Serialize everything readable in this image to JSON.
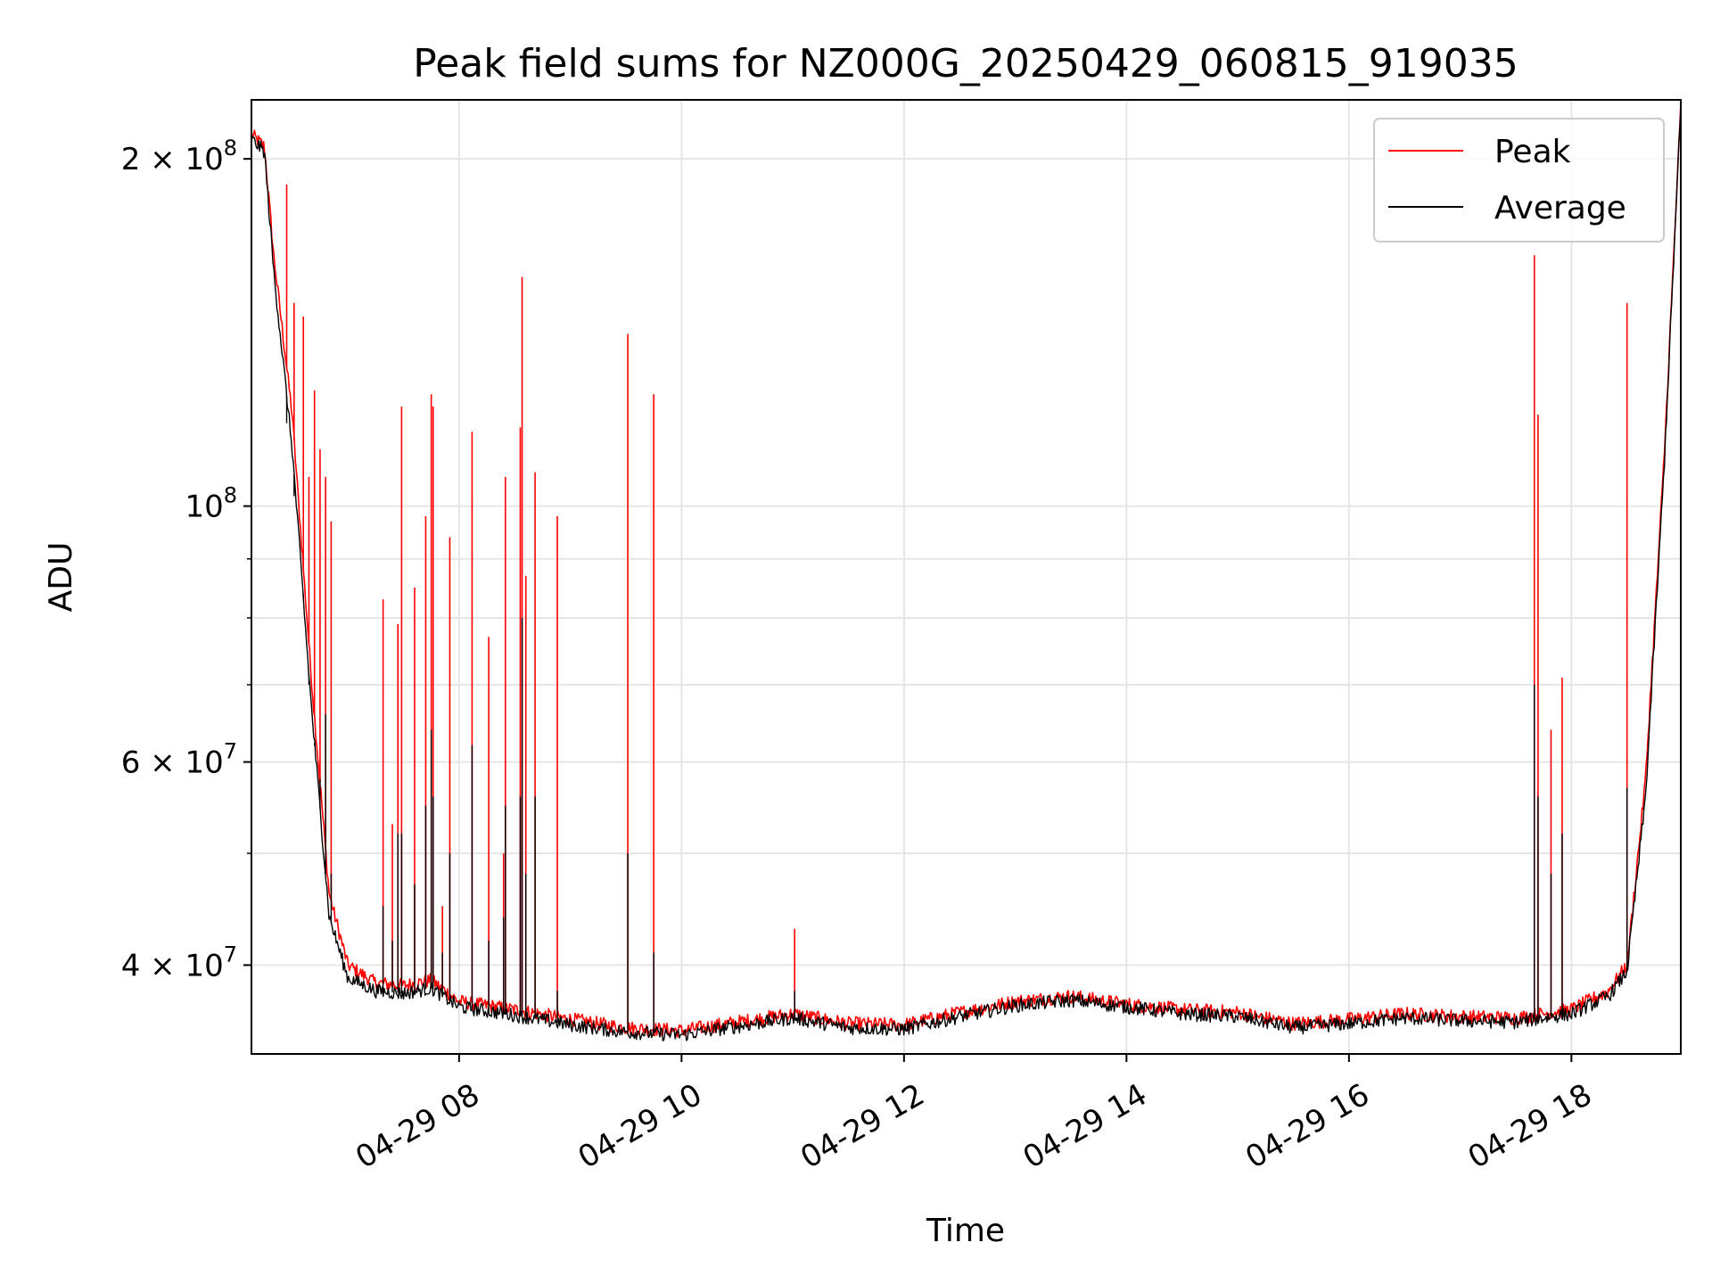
{
  "chart_data": {
    "type": "line",
    "title": "Peak field sums for NZ000G_20250429_060815_919035",
    "xlabel": "Time",
    "ylabel": "ADU",
    "y_scale": "log",
    "xlim": [
      "2025-04-29 06:08",
      "2025-04-29 18:59"
    ],
    "ylim": [
      33500000,
      225000000
    ],
    "grid": true,
    "legend": {
      "position": "top-right"
    },
    "x_ticks": [
      "04-29 08",
      "04-29 10",
      "04-29 12",
      "04-29 14",
      "04-29 16",
      "04-29 18"
    ],
    "y_tick_labels": [
      {
        "value": 40000000,
        "mantissa": "4",
        "exp": "7"
      },
      {
        "value": 60000000,
        "mantissa": "6",
        "exp": "7"
      },
      {
        "value": 100000000,
        "mantissa": "",
        "exp": "8"
      },
      {
        "value": 200000000,
        "mantissa": "2",
        "exp": "8"
      }
    ],
    "series": [
      {
        "name": "Peak",
        "color": "#ff0000",
        "x": [
          "2025-04-29 06:08",
          "2025-04-29 06:15",
          "2025-04-29 06:20",
          "2025-04-29 06:30",
          "2025-04-29 06:40",
          "2025-04-29 06:50",
          "2025-04-29 07:00",
          "2025-04-29 07:15",
          "2025-04-29 07:30",
          "2025-04-29 07:45",
          "2025-04-29 08:00",
          "2025-04-29 08:30",
          "2025-04-29 09:00",
          "2025-04-29 09:30",
          "2025-04-29 10:00",
          "2025-04-29 10:30",
          "2025-04-29 11:00",
          "2025-04-29 11:30",
          "2025-04-29 12:00",
          "2025-04-29 12:30",
          "2025-04-29 13:00",
          "2025-04-29 13:30",
          "2025-04-29 14:00",
          "2025-04-29 14:30",
          "2025-04-29 15:00",
          "2025-04-29 15:30",
          "2025-04-29 16:00",
          "2025-04-29 16:30",
          "2025-04-29 17:00",
          "2025-04-29 17:30",
          "2025-04-29 17:45",
          "2025-04-29 18:00",
          "2025-04-29 18:20",
          "2025-04-29 18:30",
          "2025-04-29 18:40",
          "2025-04-29 18:50",
          "2025-04-29 18:59"
        ],
        "values": [
          210000000,
          205000000,
          165000000,
          120000000,
          72000000,
          46000000,
          40000000,
          38600000,
          38400000,
          38800000,
          37200000,
          36600000,
          35900000,
          35300000,
          35100000,
          35700000,
          36300000,
          35600000,
          35500000,
          36400000,
          37200000,
          37600000,
          37000000,
          36600000,
          36400000,
          35600000,
          35900000,
          36300000,
          36100000,
          36000000,
          36300000,
          36600000,
          38000000,
          40000000,
          58000000,
          110000000,
          222000000
        ]
      },
      {
        "name": "Average",
        "color": "#000000",
        "x": [
          "2025-04-29 06:08",
          "2025-04-29 06:15",
          "2025-04-29 06:20",
          "2025-04-29 06:30",
          "2025-04-29 06:40",
          "2025-04-29 06:50",
          "2025-04-29 07:00",
          "2025-04-29 07:15",
          "2025-04-29 07:30",
          "2025-04-29 07:45",
          "2025-04-29 08:00",
          "2025-04-29 08:30",
          "2025-04-29 09:00",
          "2025-04-29 09:30",
          "2025-04-29 10:00",
          "2025-04-29 10:30",
          "2025-04-29 11:00",
          "2025-04-29 11:30",
          "2025-04-29 12:00",
          "2025-04-29 12:30",
          "2025-04-29 13:00",
          "2025-04-29 13:30",
          "2025-04-29 14:00",
          "2025-04-29 14:30",
          "2025-04-29 15:00",
          "2025-04-29 15:30",
          "2025-04-29 16:00",
          "2025-04-29 16:30",
          "2025-04-29 17:00",
          "2025-04-29 17:30",
          "2025-04-29 17:45",
          "2025-04-29 18:00",
          "2025-04-29 18:20",
          "2025-04-29 18:30",
          "2025-04-29 18:40",
          "2025-04-29 18:50",
          "2025-04-29 18:59"
        ],
        "values": [
          208000000,
          203000000,
          160000000,
          112000000,
          68000000,
          44000000,
          39000000,
          38000000,
          37800000,
          38200000,
          36800000,
          36200000,
          35500000,
          35000000,
          34800000,
          35400000,
          36000000,
          35300000,
          35200000,
          36100000,
          36900000,
          37300000,
          36800000,
          36300000,
          36100000,
          35300000,
          35600000,
          36000000,
          35800000,
          35700000,
          36000000,
          36300000,
          37600000,
          39500000,
          56000000,
          108000000,
          222000000
        ]
      }
    ],
    "peak_spikes": [
      {
        "x": "2025-04-29 06:27",
        "peak": 190000000,
        "average": 118000000
      },
      {
        "x": "2025-04-29 06:31",
        "peak": 150000000,
        "average": 102000000
      },
      {
        "x": "2025-04-29 06:36",
        "peak": 146000000,
        "average": 84000000
      },
      {
        "x": "2025-04-29 06:39",
        "peak": 106000000,
        "average": 70000000
      },
      {
        "x": "2025-04-29 06:42",
        "peak": 126000000,
        "average": 62000000
      },
      {
        "x": "2025-04-29 06:45",
        "peak": 112000000,
        "average": 58000000
      },
      {
        "x": "2025-04-29 06:48",
        "peak": 106000000,
        "average": 66000000
      },
      {
        "x": "2025-04-29 06:51",
        "peak": 97000000,
        "average": 48000000
      },
      {
        "x": "2025-04-29 07:19",
        "peak": 83000000,
        "average": 45000000
      },
      {
        "x": "2025-04-29 07:24",
        "peak": 53000000,
        "average": 42000000
      },
      {
        "x": "2025-04-29 07:27",
        "peak": 79000000,
        "average": 52000000
      },
      {
        "x": "2025-04-29 07:29",
        "peak": 122000000,
        "average": 52000000
      },
      {
        "x": "2025-04-29 07:36",
        "peak": 85000000,
        "average": 47000000
      },
      {
        "x": "2025-04-29 07:42",
        "peak": 98000000,
        "average": 55000000
      },
      {
        "x": "2025-04-29 07:45",
        "peak": 125000000,
        "average": 64000000
      },
      {
        "x": "2025-04-29 07:46",
        "peak": 122000000,
        "average": 56000000
      },
      {
        "x": "2025-04-29 07:51",
        "peak": 45000000,
        "average": 41000000
      },
      {
        "x": "2025-04-29 07:55",
        "peak": 94000000,
        "average": 50000000
      },
      {
        "x": "2025-04-29 08:07",
        "peak": 116000000,
        "average": 62000000
      },
      {
        "x": "2025-04-29 08:16",
        "peak": 77000000,
        "average": 42000000
      },
      {
        "x": "2025-04-29 08:24",
        "peak": 50000000,
        "average": 44000000
      },
      {
        "x": "2025-04-29 08:25",
        "peak": 106000000,
        "average": 55000000
      },
      {
        "x": "2025-04-29 08:33",
        "peak": 117000000,
        "average": 56000000
      },
      {
        "x": "2025-04-29 08:34",
        "peak": 158000000,
        "average": 80000000
      },
      {
        "x": "2025-04-29 08:36",
        "peak": 87000000,
        "average": 48000000
      },
      {
        "x": "2025-04-29 08:41",
        "peak": 107000000,
        "average": 56000000
      },
      {
        "x": "2025-04-29 08:53",
        "peak": 98000000,
        "average": 38000000
      },
      {
        "x": "2025-04-29 09:31",
        "peak": 141000000,
        "average": 50000000
      },
      {
        "x": "2025-04-29 09:45",
        "peak": 125000000,
        "average": 41000000
      },
      {
        "x": "2025-04-29 11:01",
        "peak": 43000000,
        "average": 38000000
      },
      {
        "x": "2025-04-29 17:40",
        "peak": 165000000,
        "average": 70000000
      },
      {
        "x": "2025-04-29 17:42",
        "peak": 120000000,
        "average": 56000000
      },
      {
        "x": "2025-04-29 17:49",
        "peak": 64000000,
        "average": 48000000
      },
      {
        "x": "2025-04-29 17:55",
        "peak": 71000000,
        "average": 52000000
      },
      {
        "x": "2025-04-29 18:30",
        "peak": 150000000,
        "average": 57000000
      }
    ]
  }
}
